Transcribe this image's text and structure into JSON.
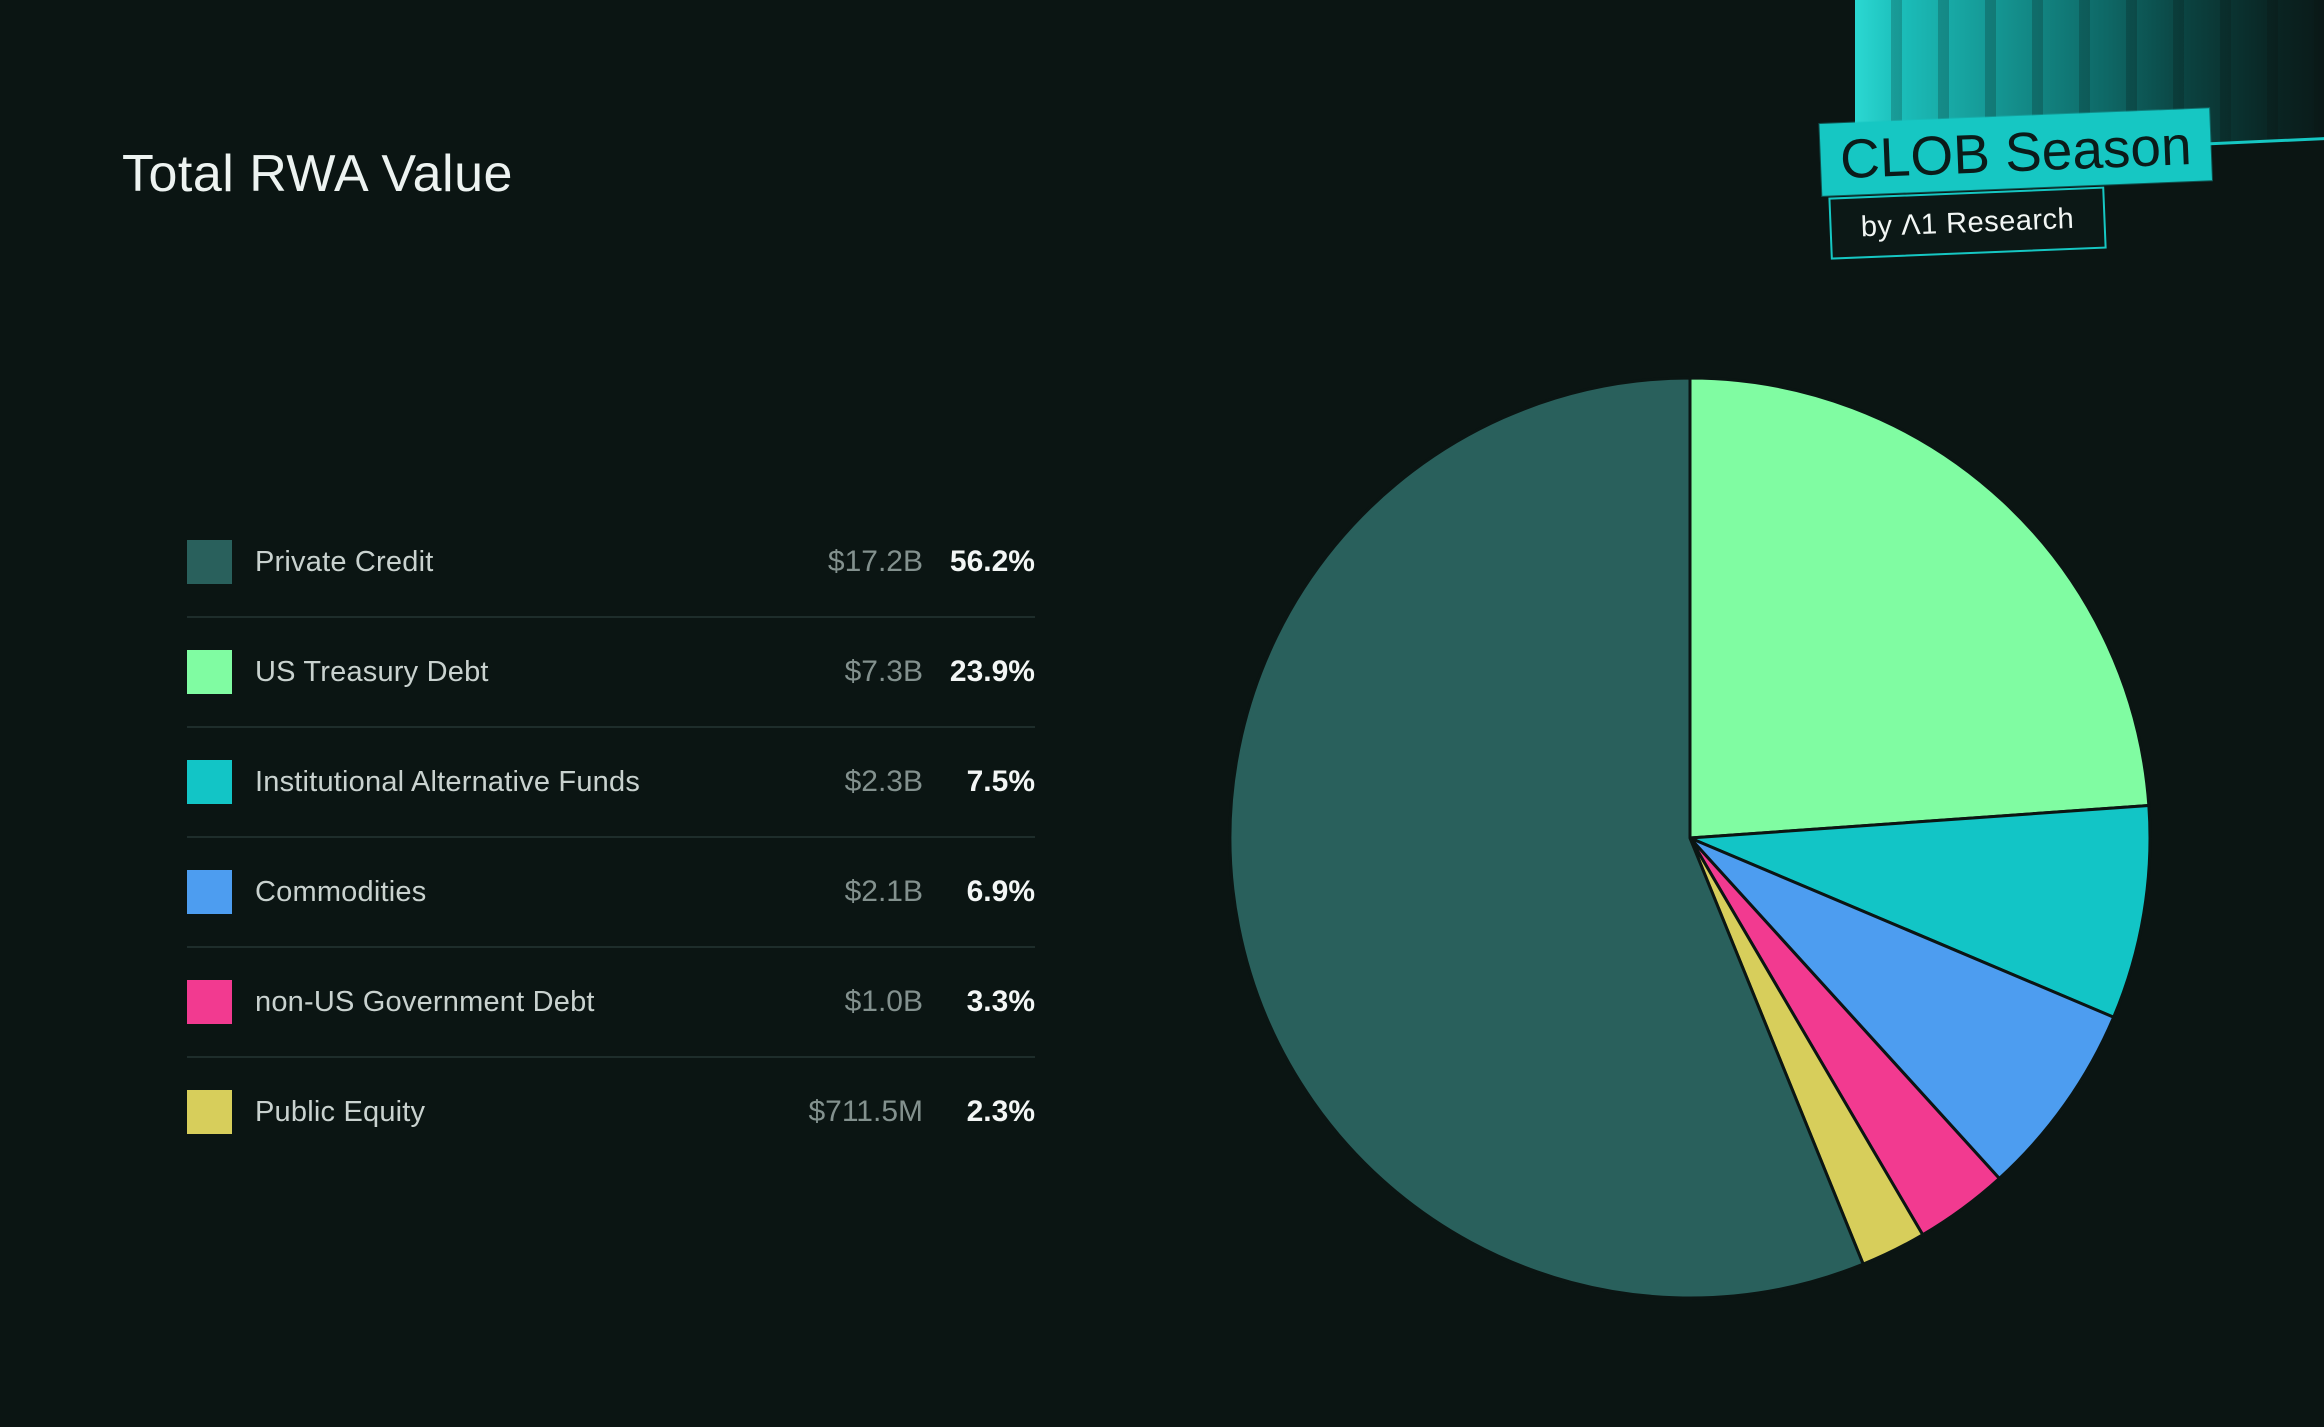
{
  "title": "Total RWA Value",
  "logo": {
    "primary": "CLOB Season",
    "secondary": "by Λ1 Research",
    "accent_color": "#16C7C3"
  },
  "colors": {
    "background": "#0B1513",
    "divider": "#1E2D2B",
    "title_text": "#EDF3F1",
    "label_text": "#C9D2CF",
    "value_text": "#83918E",
    "percent_text": "#F3F6F5"
  },
  "chart_data": {
    "type": "pie",
    "title": "Total RWA Value",
    "categories": [
      "Private Credit",
      "US Treasury Debt",
      "Institutional Alternative Funds",
      "Commodities",
      "non-US Government Debt",
      "Public Equity"
    ],
    "value_labels": [
      "$17.2B",
      "$7.3B",
      "$2.3B",
      "$2.1B",
      "$1.0B",
      "$711.5M"
    ],
    "values_billions_usd": [
      17.2,
      7.3,
      2.3,
      2.1,
      1.0,
      0.7115
    ],
    "percentages": [
      56.2,
      23.9,
      7.5,
      6.9,
      3.3,
      2.3
    ],
    "percent_labels": [
      "56.2%",
      "23.9%",
      "7.5%",
      "6.9%",
      "3.3%",
      "2.3%"
    ],
    "colors": [
      "#29605C",
      "#80FCA2",
      "#12C5C6",
      "#4D9DF0",
      "#F23A90",
      "#D7CE5B"
    ],
    "legend_position": "left",
    "pie_start": "top",
    "pie_direction": "clockwise",
    "pie_draw_order": [
      1,
      2,
      3,
      4,
      5,
      0
    ],
    "slice_stroke_color": "#0B1513"
  }
}
